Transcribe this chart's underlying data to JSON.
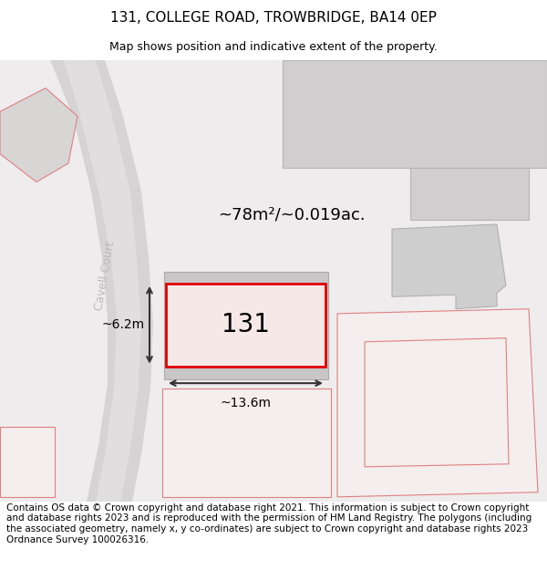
{
  "title": "131, COLLEGE ROAD, TROWBRIDGE, BA14 0EP",
  "subtitle": "Map shows position and indicative extent of the property.",
  "footer": "Contains OS data © Crown copyright and database right 2021. This information is subject to Crown copyright and database rights 2023 and is reproduced with the permission of HM Land Registry. The polygons (including the associated geometry, namely x, y co-ordinates) are subject to Crown copyright and database rights 2023 Ordnance Survey 100026316.",
  "area_text": "~78m²/~0.019ac.",
  "number_text": "131",
  "dim_h": "~6.2m",
  "dim_w": "~13.6m",
  "street_label": "Cavell Court",
  "map_bg": "#eeecec",
  "road_fill": "#dbd9d9",
  "road_white": "#e8e6e6",
  "bldg_fill": "#cecece",
  "bldg_edge": "#b0b0b0",
  "prop_fill": "#f7e8e8",
  "prop_edge": "#e00000",
  "neighbor_fill": "#f5eeee",
  "neighbor_edge": "#e08080",
  "dim_color": "#333333",
  "street_color": "#bbbbbb",
  "title_fontsize": 11,
  "subtitle_fontsize": 9,
  "footer_fontsize": 7.5,
  "area_fontsize": 13,
  "number_fontsize": 20,
  "dim_fontsize": 10,
  "street_fontsize": 9
}
